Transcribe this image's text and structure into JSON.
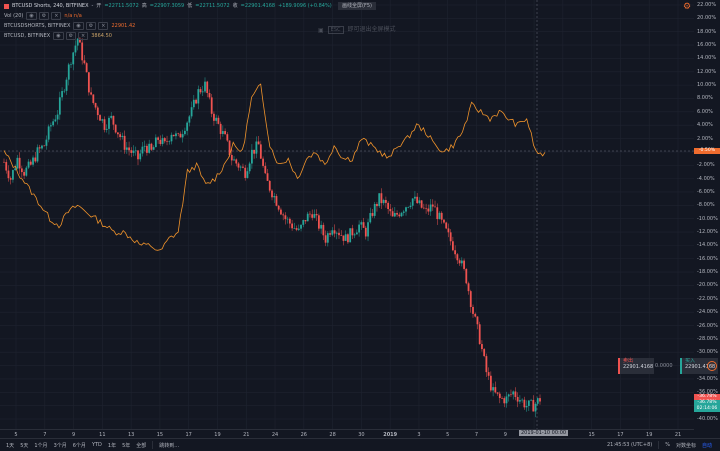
{
  "header": {
    "symbol_title": "BTCUSD Shorts, 240, BITFINEX",
    "dash": "-",
    "ohlc": {
      "open_label": "开",
      "open": "=22711.5072",
      "high_label": "高",
      "high": "=22907.3059",
      "low_label": "低",
      "low": "=22711.5072",
      "close_label": "收",
      "close": "=22901.4168",
      "change": "+189.9096 (+0.84%)"
    },
    "hint_button": "画线全屏(F5)"
  },
  "legend": {
    "vol": {
      "label": "Vol (20)",
      "values": "n/a  n/a"
    },
    "compare1": {
      "label": "BTCUSDSHORTS, BITFINEX",
      "value": "22901.42",
      "color": "#ef6c2e"
    },
    "compare2": {
      "label": "BTCUSD, BITFINEX",
      "value": "3864.50",
      "color": "#c9a268"
    }
  },
  "watermark": {
    "icon": "image-icon",
    "key": "ESC",
    "text": "即可退出全屏模式"
  },
  "settings_icon": "gear-icon",
  "y_axis": {
    "labels": [
      "22.00%",
      "20.00%",
      "18.00%",
      "16.00%",
      "14.00%",
      "12.00%",
      "10.00%",
      "8.00%",
      "6.00%",
      "4.00%",
      "2.00%",
      "0.00%",
      "-2.00%",
      "-4.00%",
      "-6.00%",
      "-8.00%",
      "-10.00%",
      "-12.00%",
      "-14.00%",
      "-16.00%",
      "-18.00%",
      "-20.00%",
      "-22.00%",
      "-24.00%",
      "-26.00%",
      "-28.00%",
      "-30.00%",
      "-32.00%",
      "-34.00%",
      "-36.00%",
      "-38.00%",
      "-40.00%"
    ],
    "current_tags": [
      {
        "text": "-0.50%",
        "color": "#ef6c2e"
      },
      {
        "text": "-36.78%",
        "color": "#ef5350"
      },
      {
        "text": "-36.78%",
        "color": "#26a69a"
      },
      {
        "text": "02:14:06",
        "color": "#26a69a"
      }
    ]
  },
  "x_axis": {
    "labels": [
      "5",
      "7",
      "9",
      "11",
      "13",
      "15",
      "17",
      "19",
      "21",
      "24",
      "26",
      "28",
      "30",
      "2019",
      "3",
      "5",
      "7",
      "9",
      "11",
      "13",
      "15",
      "17",
      "19",
      "21"
    ],
    "crosshair_date": "2019-01-10  00:00"
  },
  "trade": {
    "sell_label": "卖出",
    "sell_price": "22901.4168",
    "spread": "0.0000",
    "buy_label": "买入",
    "buy_price": "22901.4168",
    "info_icon": "info-icon"
  },
  "bottom_bar": {
    "timeframes": [
      "1天",
      "5天",
      "1个月",
      "3个月",
      "6个月",
      "YTD",
      "1年",
      "5年",
      "全部"
    ],
    "goto_label": "跳转到...",
    "clock": "21:45:53 (UTC+8)",
    "percent_label": "%",
    "log_label": "对数坐标",
    "auto_label": "自动"
  },
  "chart_data": {
    "type": "line",
    "y_axis_unit": "%",
    "ylim": [
      -41,
      23
    ],
    "series": [
      {
        "kind": "candlestick",
        "up_color": "#26a69a",
        "down_color": "#ef5350",
        "close_path": [
          -1.5,
          -4,
          -1,
          -3,
          -2,
          0,
          1,
          4,
          6,
          10,
          14,
          17,
          13,
          8,
          6,
          4,
          5,
          3,
          1,
          0,
          -1,
          1,
          0,
          2,
          1,
          3,
          2,
          4,
          6,
          9,
          10,
          6,
          4,
          2,
          -1,
          -2,
          -3,
          0,
          1,
          -4,
          -6,
          -8,
          -10,
          -11,
          -12,
          -10,
          -9,
          -11,
          -13,
          -11,
          -12,
          -13,
          -12,
          -11,
          -12,
          -9,
          -7,
          -8,
          -10,
          -9,
          -8,
          -7,
          -8,
          -9,
          -8,
          -10,
          -12,
          -14,
          -16,
          -19,
          -24,
          -28,
          -33,
          -36,
          -37,
          -37,
          -36,
          -37,
          -38,
          -38,
          -37
        ]
      },
      {
        "kind": "line",
        "color": "#f0932b",
        "path": [
          0,
          -2,
          -4,
          -6,
          -8,
          -10,
          -11,
          -9,
          -8,
          -9,
          -10,
          -11,
          -12,
          -12,
          -13,
          -14,
          -14,
          -15,
          -13,
          -12,
          -3,
          -2,
          -5,
          -4,
          -2,
          1,
          0,
          8,
          10,
          1,
          -2,
          -1,
          -4,
          -1,
          0,
          -2,
          1,
          -1,
          -1,
          2,
          1,
          0,
          -1,
          1,
          2,
          4,
          3,
          1,
          0,
          1,
          3,
          7,
          6,
          5,
          6,
          5,
          4,
          5,
          0,
          -0.5
        ]
      }
    ]
  }
}
